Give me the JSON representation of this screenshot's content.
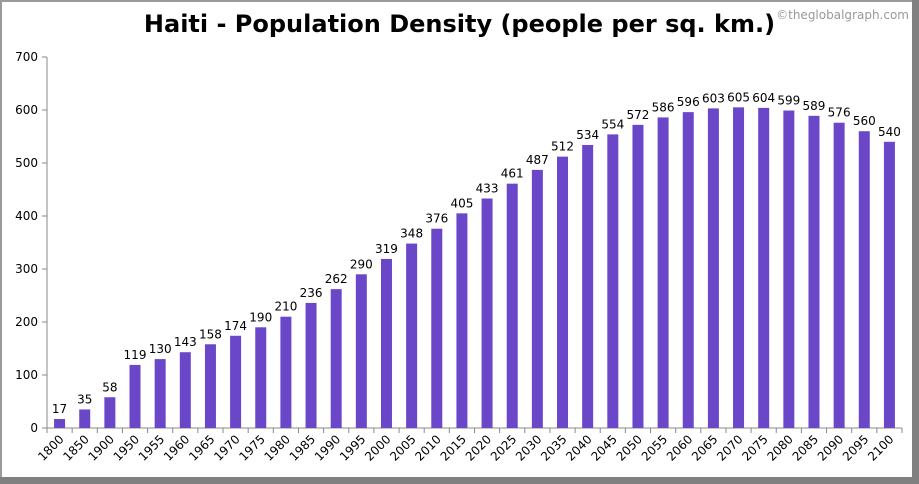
{
  "chart_data": {
    "type": "bar",
    "title": "Haiti - Population Density (people per sq. km.)",
    "watermark": "©theglobalgraph.com",
    "xlabel": "",
    "ylabel": "",
    "ylim": [
      0,
      700
    ],
    "yticks": [
      0,
      100,
      200,
      300,
      400,
      500,
      600,
      700
    ],
    "grid": false,
    "legend": "none",
    "bar_color": "#6a47c8",
    "categories": [
      "1800",
      "1850",
      "1900",
      "1950",
      "1955",
      "1960",
      "1965",
      "1970",
      "1975",
      "1980",
      "1985",
      "1990",
      "1995",
      "2000",
      "2005",
      "2010",
      "2015",
      "2020",
      "2025",
      "2030",
      "2035",
      "2040",
      "2045",
      "2050",
      "2055",
      "2060",
      "2065",
      "2070",
      "2075",
      "2080",
      "2085",
      "2090",
      "2095",
      "2100"
    ],
    "values": [
      17,
      35,
      58,
      119,
      130,
      143,
      158,
      174,
      190,
      210,
      236,
      262,
      290,
      319,
      348,
      376,
      405,
      433,
      461,
      487,
      512,
      534,
      554,
      572,
      586,
      596,
      603,
      605,
      604,
      599,
      589,
      576,
      560,
      540
    ]
  }
}
